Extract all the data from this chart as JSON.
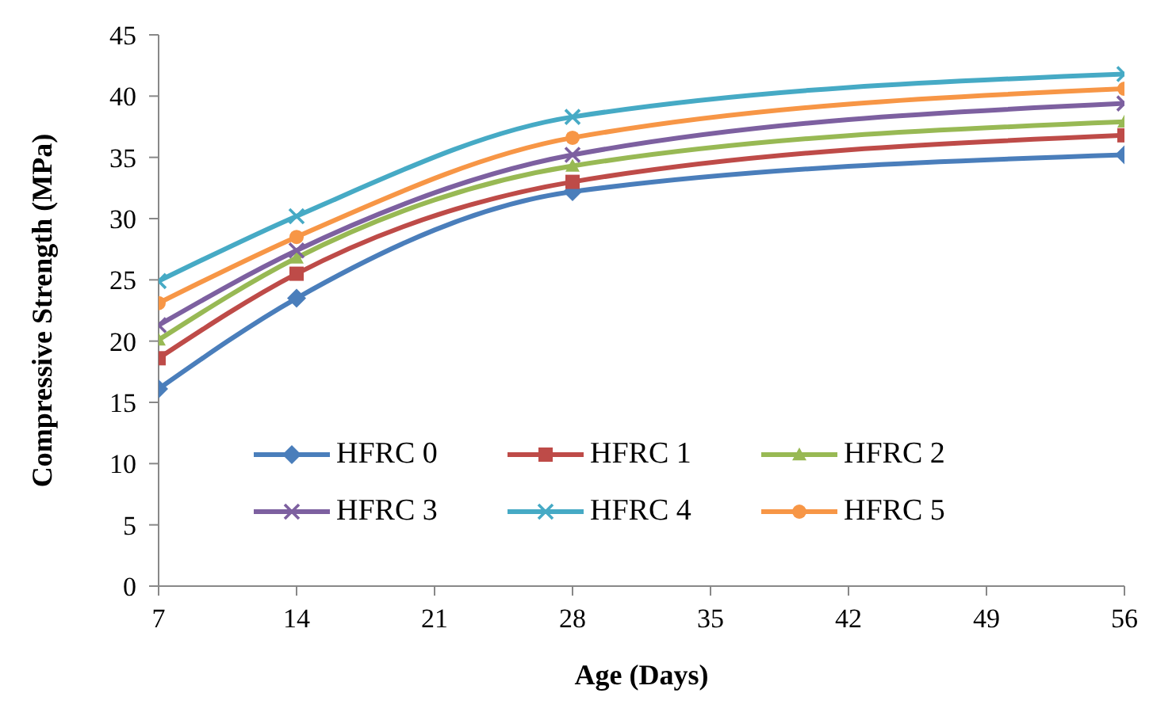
{
  "chart_data": {
    "type": "line",
    "xlabel": "Age (Days)",
    "ylabel": "Compressive Strength (MPa)",
    "x": [
      7,
      14,
      28,
      56
    ],
    "xlim": [
      7,
      56
    ],
    "xticks": [
      7,
      14,
      21,
      28,
      35,
      42,
      49,
      56
    ],
    "ylim": [
      0,
      45
    ],
    "yticks": [
      0,
      5,
      10,
      15,
      20,
      25,
      30,
      35,
      40,
      45
    ],
    "grid": false,
    "legend": "bottom",
    "line_style": "solid",
    "series": [
      {
        "name": "HFRC 0",
        "color": "#4a7ebb",
        "marker": "diamond",
        "values": [
          16.1,
          23.5,
          32.2,
          35.2
        ]
      },
      {
        "name": "HFRC 1",
        "color": "#be4b48",
        "marker": "square",
        "values": [
          18.6,
          25.5,
          33.0,
          36.8
        ]
      },
      {
        "name": "HFRC 2",
        "color": "#98b954",
        "marker": "triangle",
        "values": [
          20.1,
          26.8,
          34.3,
          37.9
        ]
      },
      {
        "name": "HFRC 3",
        "color": "#7d60a0",
        "marker": "cross",
        "values": [
          21.3,
          27.4,
          35.2,
          39.4
        ]
      },
      {
        "name": "HFRC 4",
        "color": "#46aac5",
        "marker": "cross",
        "values": [
          24.9,
          30.2,
          38.3,
          41.8
        ]
      },
      {
        "name": "HFRC 5",
        "color": "#f79646",
        "marker": "circle",
        "values": [
          23.1,
          28.5,
          36.6,
          40.6
        ]
      }
    ]
  }
}
